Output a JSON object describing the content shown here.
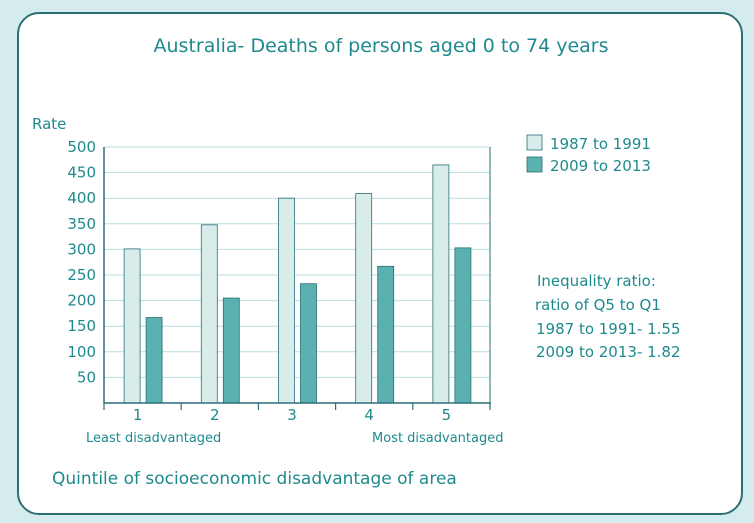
{
  "colors": {
    "background": "#d5ecee",
    "card_border": "#2c6f73",
    "text": "#1e8a8e",
    "axis": "#2a6f78",
    "grid": "#b9dee0",
    "series_1987": "#d8ecea",
    "series_2009": "#5bb0b0"
  },
  "chart_data": {
    "type": "bar",
    "title": "Australia- Deaths of persons aged 0 to 74 years",
    "ylabel": "Rate",
    "xlabel": "Quintile of socioeconomic disadvantage of area",
    "ylim": [
      0,
      500
    ],
    "yticks": [
      50,
      100,
      150,
      200,
      250,
      300,
      350,
      400,
      450,
      500
    ],
    "categories": [
      "1",
      "2",
      "3",
      "4",
      "5"
    ],
    "x_annotations": {
      "left": "Least disadvantaged",
      "right": "Most disadvantaged"
    },
    "series": [
      {
        "name": "1987 to 1991",
        "values": [
          301,
          348,
          400,
          409,
          465
        ]
      },
      {
        "name": "2009 to 2013",
        "values": [
          167,
          205,
          233,
          267,
          303
        ]
      }
    ],
    "legend_position": "top-right",
    "grid": true,
    "annotation": {
      "line1": "Inequality ratio:",
      "line2": "ratio of Q5 to Q1",
      "line3": "1987 to 1991- 1.55",
      "line4": "2009 to 2013- 1.82"
    }
  }
}
